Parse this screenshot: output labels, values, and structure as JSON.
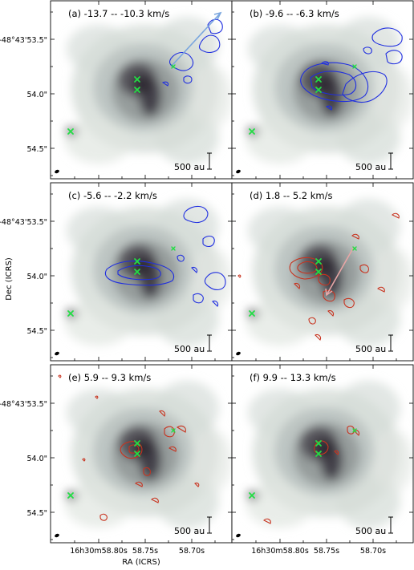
{
  "figure": {
    "xlabel": "RA (ICRS)",
    "ylabel": "Dec (ICRS)",
    "xticks": [
      "16h30m58.80s",
      "58.75s",
      "58.70s"
    ],
    "yticks": [
      "-48°43'53.5\"",
      "54.0\"",
      "54.5\""
    ],
    "scalebar_label": "500 au",
    "colors": {
      "blue": "#1f2ee0",
      "red": "#c8321e",
      "marker": "#22dd44",
      "arrow_blue": "#7aa6de",
      "arrow_red": "#e8a6a6",
      "image_dark": "#2f2b33",
      "image_light": "#d6ddd8"
    },
    "panels": [
      {
        "id": "a",
        "title": "(a) -13.7 -- -10.3 km/s",
        "lobe": "blue",
        "arrow": true
      },
      {
        "id": "b",
        "title": "(b) -9.6 -- -6.3 km/s",
        "lobe": "blue",
        "arrow": false
      },
      {
        "id": "c",
        "title": "(c) -5.6 -- -2.2 km/s",
        "lobe": "blue",
        "arrow": false
      },
      {
        "id": "d",
        "title": "(d) 1.8 -- 5.2 km/s",
        "lobe": "red",
        "arrow": true
      },
      {
        "id": "e",
        "title": "(e) 5.9 -- 9.3 km/s",
        "lobe": "red",
        "arrow": false
      },
      {
        "id": "f",
        "title": "(f) 9.9 -- 13.3 km/s",
        "lobe": "red",
        "arrow": false
      }
    ]
  }
}
